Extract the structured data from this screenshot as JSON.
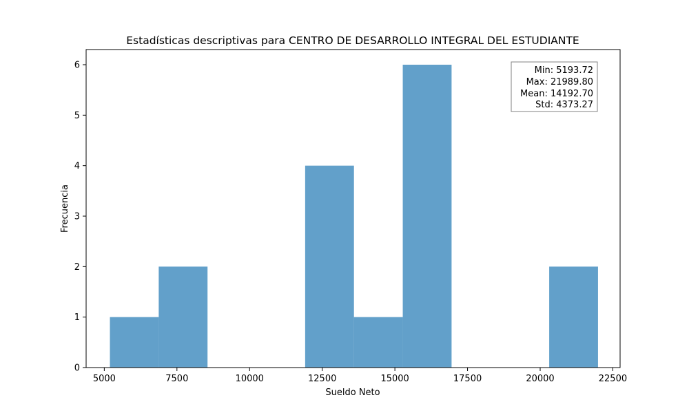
{
  "chart_data": {
    "type": "bar",
    "title": "Estadísticas descriptivas para CENTRO DE DESARROLLO INTEGRAL DEL ESTUDIANTE",
    "xlabel": "Sueldo Neto",
    "ylabel": "Frecuencia",
    "xlim": [
      4375,
      22750
    ],
    "ylim": [
      0,
      6.3
    ],
    "x_ticks": [
      5000,
      7500,
      10000,
      12500,
      15000,
      17500,
      20000,
      22500
    ],
    "x_tick_labels": [
      "5000",
      "7500",
      "10000",
      "12500",
      "15000",
      "17500",
      "20000",
      "22500"
    ],
    "y_ticks": [
      0,
      1,
      2,
      3,
      4,
      5,
      6
    ],
    "y_tick_labels": [
      "0",
      "1",
      "2",
      "3",
      "4",
      "5",
      "6"
    ],
    "bin_edges": [
      5193.72,
      6873.33,
      8552.93,
      10232.54,
      11912.15,
      13591.76,
      15271.36,
      16950.97,
      18630.58,
      20310.19,
      21989.8
    ],
    "values": [
      1,
      2,
      0,
      0,
      4,
      1,
      6,
      0,
      0,
      2
    ],
    "bar_color": "#1f77b4",
    "bar_opacity": 0.7,
    "grid": false,
    "stats_box": {
      "placement": "top-right",
      "lines": [
        "Min: 5193.72",
        "Max: 21989.80",
        "Mean: 14192.70",
        "Std: 4373.27"
      ]
    }
  }
}
